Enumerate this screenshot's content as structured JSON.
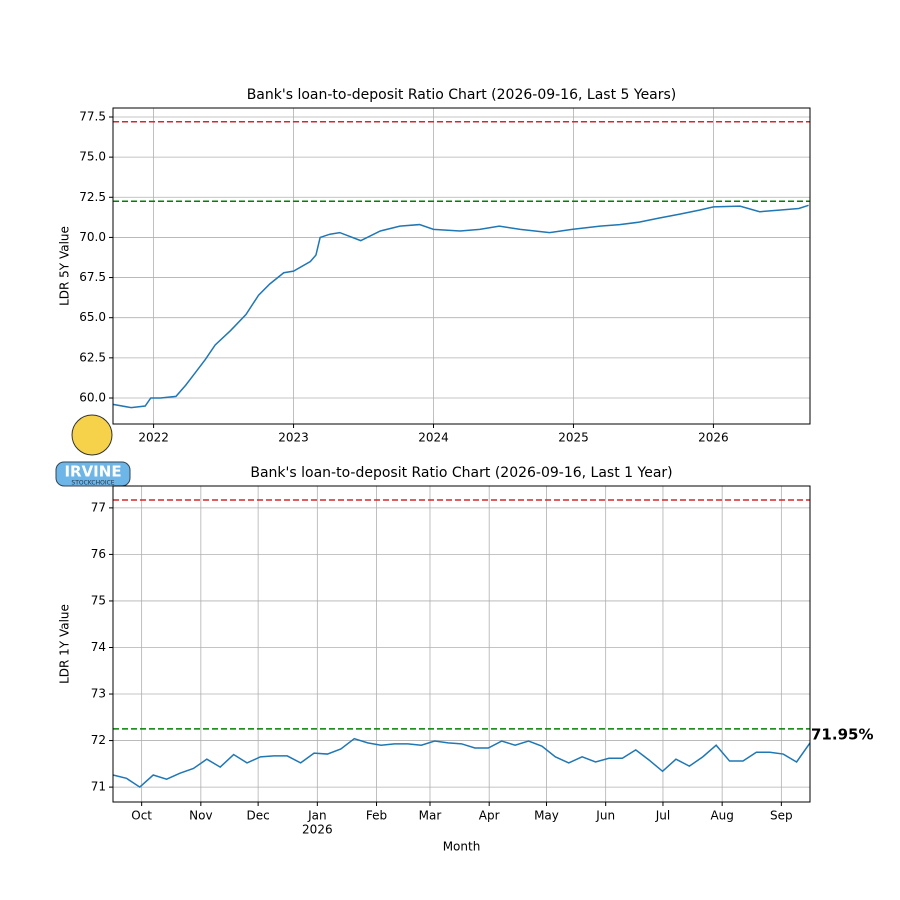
{
  "logo_text": "IRVINE",
  "logo_subtext": "STOCKCHOICE",
  "chart_data": [
    {
      "type": "line",
      "title": "Bank's loan-to-deposit Ratio Chart (2026-09-16, Last 5 Years)",
      "ylabel": "LDR 5Y Value",
      "grid": true,
      "x": [
        2021.71,
        2021.84,
        2021.94,
        2021.98,
        2022.05,
        2022.16,
        2022.23,
        2022.3,
        2022.37,
        2022.44,
        2022.55,
        2022.66,
        2022.75,
        2022.83,
        2022.93,
        2023.0,
        2023.12,
        2023.16,
        2023.19,
        2023.26,
        2023.33,
        2023.48,
        2023.62,
        2023.76,
        2023.9,
        2024.0,
        2024.19,
        2024.33,
        2024.47,
        2024.62,
        2024.83,
        2024.99,
        2025.19,
        2025.33,
        2025.47,
        2025.61,
        2025.76,
        2025.9,
        2026.0,
        2026.19,
        2026.33,
        2026.47,
        2026.61,
        2026.68
      ],
      "series": [
        {
          "color": "#1f77b4",
          "values": [
            59.6,
            59.4,
            59.5,
            60.0,
            60.0,
            60.1,
            60.8,
            61.6,
            62.4,
            63.3,
            64.2,
            65.2,
            66.4,
            67.1,
            67.8,
            67.9,
            68.5,
            68.9,
            70.0,
            70.2,
            70.3,
            69.8,
            70.4,
            70.7,
            70.8,
            70.5,
            70.4,
            70.5,
            70.7,
            70.5,
            70.3,
            70.5,
            70.7,
            70.8,
            70.95,
            71.2,
            71.45,
            71.7,
            71.9,
            71.95,
            71.6,
            71.7,
            71.8,
            72.0
          ]
        }
      ],
      "hlines": [
        {
          "value": 77.2,
          "color": "#d62728"
        },
        {
          "value": 72.25,
          "color": "#008000"
        }
      ],
      "xlim": [
        2021.71,
        2026.69
      ],
      "xticks": [
        2022,
        2023,
        2024,
        2025,
        2026
      ],
      "ylim": [
        58.38,
        78.06
      ],
      "yticks": [
        {
          "value": 60,
          "label": "60.0"
        },
        {
          "value": 62.5,
          "label": "62.5"
        },
        {
          "value": 65,
          "label": "65.0"
        },
        {
          "value": 67.5,
          "label": "67.5"
        },
        {
          "value": 70,
          "label": "70.0"
        },
        {
          "value": 72.5,
          "label": "72.5"
        },
        {
          "value": 75,
          "label": "75.0"
        },
        {
          "value": 77.5,
          "label": "77.5"
        }
      ]
    },
    {
      "type": "line",
      "title": "Bank's loan-to-deposit Ratio Chart (2026-09-16, Last 1 Year)",
      "ylabel": "LDR 1Y Value",
      "xlabel": "Month",
      "grid": true,
      "series": [
        {
          "color": "#1f77b4",
          "values": [
            71.26,
            71.19,
            71.0,
            71.26,
            71.17,
            71.3,
            71.4,
            71.6,
            71.43,
            71.7,
            71.52,
            71.65,
            71.67,
            71.67,
            71.52,
            71.73,
            71.71,
            71.82,
            72.04,
            71.95,
            71.9,
            71.93,
            71.93,
            71.9,
            71.99,
            71.95,
            71.93,
            71.84,
            71.84,
            71.99,
            71.9,
            71.99,
            71.88,
            71.65,
            71.52,
            71.65,
            71.54,
            71.62,
            71.62,
            71.8,
            71.58,
            71.34,
            71.6,
            71.45,
            71.65,
            71.9,
            71.56,
            71.56,
            71.75,
            71.75,
            71.71,
            71.54,
            71.95
          ]
        }
      ],
      "last_label": "71.95%",
      "hlines": [
        {
          "value": 77.17,
          "color": "#d62728"
        },
        {
          "value": 72.25,
          "color": "#008000"
        }
      ],
      "xlim": [
        "2025-09-16",
        "2026-09-16"
      ],
      "xticks": [
        {
          "value": "2025-10",
          "label": "Oct"
        },
        {
          "value": "2025-11",
          "label": "Nov"
        },
        {
          "value": "2025-12",
          "label": "Dec"
        },
        {
          "value": "2026-01",
          "label": "Jan",
          "sublabel": "2026"
        },
        {
          "value": "2026-02",
          "label": "Feb"
        },
        {
          "value": "2026-03",
          "label": "Mar"
        },
        {
          "value": "2026-04",
          "label": "Apr"
        },
        {
          "value": "2026-05",
          "label": "May"
        },
        {
          "value": "2026-06",
          "label": "Jun"
        },
        {
          "value": "2026-07",
          "label": "Jul"
        },
        {
          "value": "2026-08",
          "label": "Aug"
        },
        {
          "value": "2026-09",
          "label": "Sep"
        }
      ],
      "ylim": [
        70.68,
        77.47
      ],
      "yticks": [
        71,
        72,
        73,
        74,
        75,
        76,
        77
      ]
    }
  ]
}
